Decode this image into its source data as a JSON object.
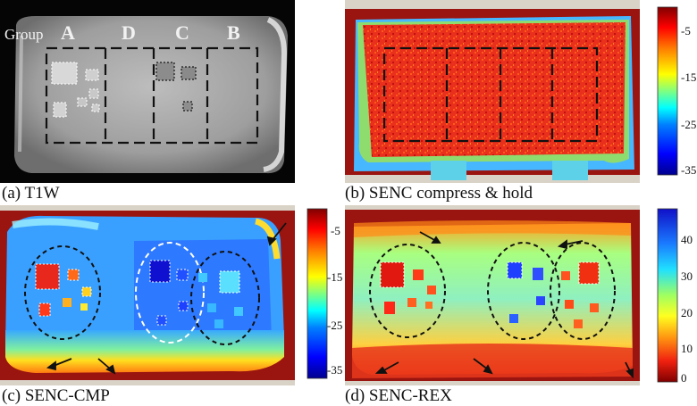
{
  "panel_a": {
    "caption": "(a) T1W",
    "group_prefix": "Group",
    "group_labels": [
      "A",
      "D",
      "C",
      "B"
    ]
  },
  "panel_b": {
    "caption": "(b) SENC compress & hold",
    "colorbar_ticks": [
      "-5",
      "-15",
      "-25",
      "-35"
    ]
  },
  "panel_c": {
    "caption": "(c) SENC-CMP",
    "colorbar_ticks": [
      "-5",
      "-15",
      "-25",
      "-35"
    ]
  },
  "panel_d": {
    "caption": "(d) SENC-REX",
    "colorbar_ticks": [
      "40",
      "30",
      "20",
      "10",
      "0"
    ]
  },
  "colors": {
    "jet": [
      "#00008f",
      "#0000ff",
      "#0080ff",
      "#00ffff",
      "#80ff80",
      "#ffff00",
      "#ff8000",
      "#ff0000",
      "#800000"
    ]
  }
}
